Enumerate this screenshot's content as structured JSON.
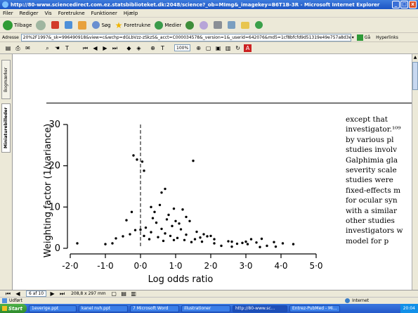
{
  "window": {
    "title": "http://80-www.sciencedirect.com.ez.statsbiblioteket.dk:2048/science?_ob=MImg&_imagekey=B6T1B-3R - Microsoft Internet Explorer",
    "minimize": "_",
    "maximize": "□",
    "close": "x"
  },
  "menu": [
    "Filer",
    "Rediger",
    "Vis",
    "Foretrukne",
    "Funktioner",
    "Hjælp"
  ],
  "toolbar": {
    "back": "Tilbage",
    "search": "Søg",
    "favorites": "Foretrukne",
    "media": "Medier"
  },
  "address": {
    "label": "Adresse",
    "url": "20%2F1997&_sk=996490918&view=c&wchp=dGLbVzz-zSkzS&_acct=C000034578&_version=1&_userid=642076&md5=1cf8bfcfd9d51319e49e757a8d3e5b7f&ie=/f.pdf",
    "go": "Gå",
    "links": "Hyperlinks"
  },
  "pdf": {
    "zoom": "100%",
    "page_indicator": "6 af 10",
    "page_size": "208,8 x 297 mm",
    "tab_bookmarks": "Bogmærker",
    "tab_thumbnails": "Miniaturebilleder"
  },
  "chart_data": {
    "type": "scatter",
    "xlabel": "Log odds ratio",
    "ylabel": "Weighting factor (1/variance)",
    "xlim": [
      -2.0,
      5.0
    ],
    "ylim": [
      0,
      30
    ],
    "xticks": [
      "-2·0",
      "-1·0",
      "0·0",
      "1·0",
      "2·0",
      "3·0",
      "4·0",
      "5·0"
    ],
    "yticks": [
      "0",
      "10",
      "20",
      "30"
    ],
    "reference_line_x": 0.0,
    "points": [
      [
        -0.2,
        22.5
      ],
      [
        -0.1,
        21.5
      ],
      [
        0.05,
        21.0
      ],
      [
        1.5,
        21.2
      ],
      [
        0.1,
        18.8
      ],
      [
        0.7,
        14.4
      ],
      [
        0.6,
        13.5
      ],
      [
        -0.25,
        8.8
      ],
      [
        0.3,
        10.0
      ],
      [
        0.55,
        10.5
      ],
      [
        0.95,
        9.6
      ],
      [
        1.2,
        9.4
      ],
      [
        0.4,
        8.8
      ],
      [
        0.8,
        8.1
      ],
      [
        1.3,
        7.6
      ],
      [
        0.35,
        7.3
      ],
      [
        0.75,
        7.0
      ],
      [
        1.0,
        6.6
      ],
      [
        1.4,
        6.6
      ],
      [
        1.1,
        6.0
      ],
      [
        0.45,
        6.2
      ],
      [
        -0.4,
        6.8
      ],
      [
        0.9,
        5.4
      ],
      [
        0.15,
        5.0
      ],
      [
        0.6,
        4.7
      ],
      [
        1.15,
        4.6
      ],
      [
        1.6,
        4.0
      ],
      [
        -0.15,
        4.4
      ],
      [
        0.0,
        4.5
      ],
      [
        0.3,
        3.9
      ],
      [
        0.7,
        3.6
      ],
      [
        1.3,
        3.3
      ],
      [
        1.8,
        3.4
      ],
      [
        1.9,
        2.9
      ],
      [
        2.0,
        3.0
      ],
      [
        -0.5,
        2.9
      ],
      [
        -0.7,
        2.4
      ],
      [
        0.1,
        3.0
      ],
      [
        0.5,
        2.7
      ],
      [
        0.85,
        3.0
      ],
      [
        1.05,
        2.5
      ],
      [
        1.55,
        2.2
      ],
      [
        1.7,
        2.6
      ],
      [
        2.1,
        2.2
      ],
      [
        -0.3,
        3.4
      ],
      [
        0.25,
        2.2
      ],
      [
        0.95,
        2.0
      ],
      [
        1.25,
        2.0
      ],
      [
        -1.0,
        1.0
      ],
      [
        -0.8,
        1.2
      ],
      [
        0.65,
        1.8
      ],
      [
        1.45,
        1.5
      ],
      [
        1.75,
        1.6
      ],
      [
        2.1,
        1.2
      ],
      [
        2.6,
        1.6
      ],
      [
        2.75,
        1.1
      ],
      [
        2.9,
        1.3
      ],
      [
        3.0,
        1.6
      ],
      [
        3.05,
        1.0
      ],
      [
        3.3,
        1.4
      ],
      [
        3.45,
        2.3
      ],
      [
        3.6,
        0.6
      ],
      [
        3.8,
        1.5
      ],
      [
        4.05,
        1.2
      ],
      [
        4.35,
        1.0
      ],
      [
        2.3,
        0.6
      ],
      [
        2.6,
        0.4
      ],
      [
        2.5,
        1.7
      ],
      [
        3.15,
        2.2
      ],
      [
        3.4,
        0.3
      ],
      [
        3.85,
        0.4
      ],
      [
        -1.8,
        1.2
      ]
    ]
  },
  "article_text": [
    "except    that",
    "investigator.¹⁰⁹",
    "by  various  pl",
    "studies  involv",
    "Galphimia gla",
    "severity scale",
    "studies  were",
    "fixed-effects m",
    "for ocular syn",
    "with a similar",
    "other studies",
    "investigators w",
    "model  for  p"
  ],
  "status": {
    "left": "Udført",
    "zone": "Internet"
  },
  "taskbar": {
    "start": "Start",
    "tasks": [
      "1everige.ppt",
      "kanel nvh.ppt",
      "7 Microsoft Word",
      "illustrationer",
      "http://80-www.sc...",
      "Entrez-PubMed - Mi..."
    ],
    "clock": "20:04"
  }
}
